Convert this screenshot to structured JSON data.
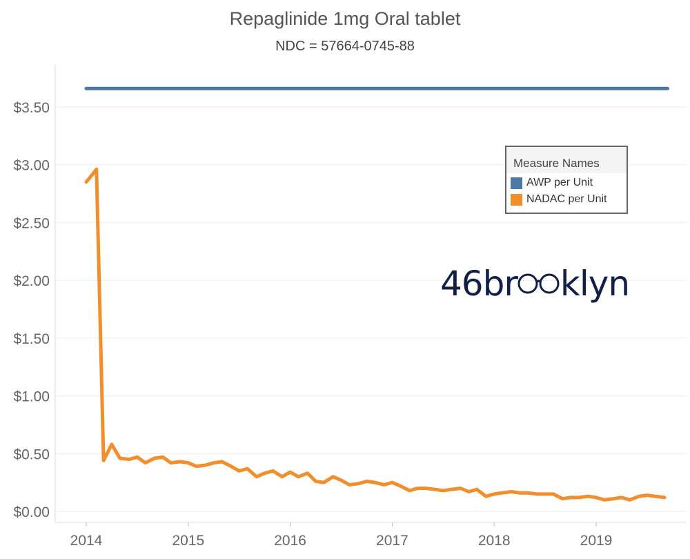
{
  "chart_data": {
    "type": "line",
    "title": "Repaglinide 1mg Oral tablet",
    "subtitle": "NDC = 57664-0745-88",
    "xlabel": "",
    "ylabel": "",
    "x_ticks": [
      "2014",
      "2015",
      "2016",
      "2017",
      "2018",
      "2019"
    ],
    "y_ticks": [
      "$0.00",
      "$0.50",
      "$1.00",
      "$1.50",
      "$2.00",
      "$2.50",
      "$3.00",
      "$3.50"
    ],
    "ylim": [
      0,
      3.75
    ],
    "xlim": [
      2013.7,
      2020.0
    ],
    "grid": true,
    "legend_position": "top-right",
    "legend_title": "Measure Names",
    "series": [
      {
        "name": "AWP per Unit",
        "color": "#4e79a7",
        "x": [
          2014.0,
          2019.7
        ],
        "values": [
          3.66,
          3.66
        ]
      },
      {
        "name": "NADAC per Unit",
        "color": "#f28e2b",
        "x": [
          2014.0,
          2014.1,
          2014.17,
          2014.25,
          2014.33,
          2014.42,
          2014.5,
          2014.58,
          2014.67,
          2014.75,
          2014.83,
          2014.92,
          2015.0,
          2015.08,
          2015.17,
          2015.25,
          2015.33,
          2015.42,
          2015.5,
          2015.58,
          2015.67,
          2015.75,
          2015.83,
          2015.92,
          2016.0,
          2016.08,
          2016.17,
          2016.25,
          2016.33,
          2016.42,
          2016.5,
          2016.58,
          2016.67,
          2016.75,
          2016.83,
          2016.92,
          2017.0,
          2017.08,
          2017.17,
          2017.25,
          2017.33,
          2017.42,
          2017.5,
          2017.58,
          2017.67,
          2017.75,
          2017.83,
          2017.92,
          2018.0,
          2018.08,
          2018.17,
          2018.25,
          2018.33,
          2018.42,
          2018.5,
          2018.58,
          2018.67,
          2018.75,
          2018.83,
          2018.92,
          2019.0,
          2019.08,
          2019.17,
          2019.25,
          2019.33,
          2019.42,
          2019.5,
          2019.58,
          2019.67
        ],
        "values": [
          2.85,
          2.96,
          0.44,
          0.58,
          0.46,
          0.45,
          0.47,
          0.42,
          0.46,
          0.47,
          0.42,
          0.43,
          0.42,
          0.39,
          0.4,
          0.42,
          0.43,
          0.39,
          0.35,
          0.37,
          0.3,
          0.33,
          0.35,
          0.3,
          0.34,
          0.3,
          0.33,
          0.26,
          0.25,
          0.3,
          0.27,
          0.23,
          0.24,
          0.26,
          0.25,
          0.23,
          0.25,
          0.22,
          0.18,
          0.2,
          0.2,
          0.19,
          0.18,
          0.19,
          0.2,
          0.17,
          0.19,
          0.13,
          0.15,
          0.16,
          0.17,
          0.16,
          0.16,
          0.15,
          0.15,
          0.15,
          0.11,
          0.12,
          0.12,
          0.13,
          0.12,
          0.1,
          0.11,
          0.12,
          0.1,
          0.13,
          0.14,
          0.13,
          0.12
        ]
      }
    ]
  },
  "logo": {
    "text_left": "46br",
    "text_right": "klyn"
  }
}
